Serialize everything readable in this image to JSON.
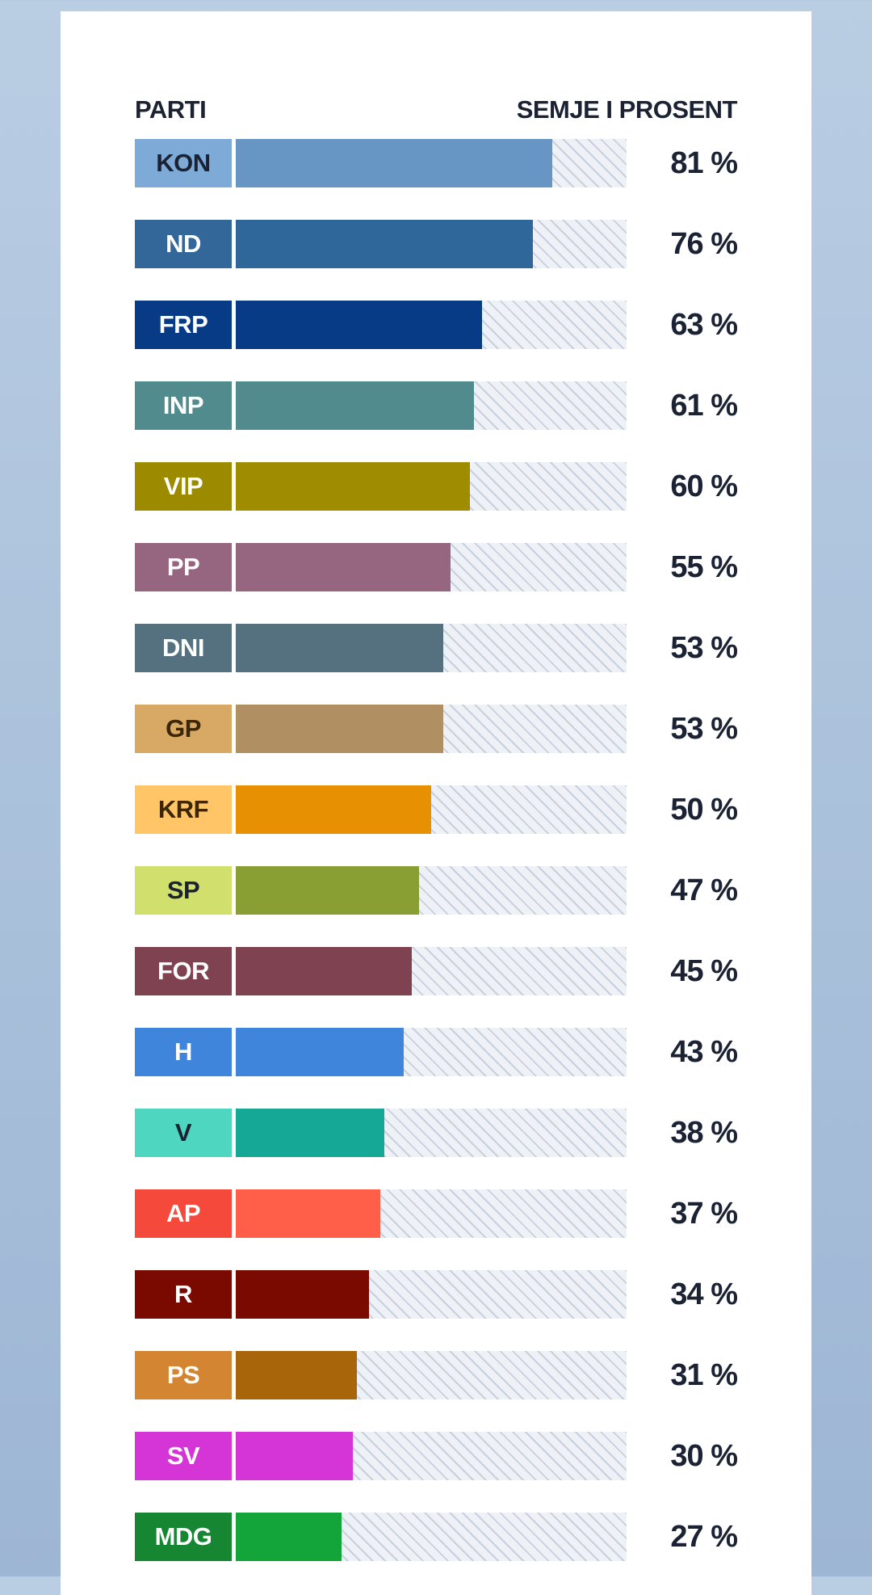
{
  "header": {
    "left": "PARTI",
    "right": "SEMJE I PROSENT"
  },
  "chart_data": {
    "type": "bar",
    "categories": [
      "KON",
      "ND",
      "FRP",
      "INP",
      "VIP",
      "PP",
      "DNI",
      "GP",
      "KRF",
      "SP",
      "FOR",
      "H",
      "V",
      "AP",
      "R",
      "PS",
      "SV",
      "MDG"
    ],
    "values": [
      81,
      76,
      63,
      61,
      60,
      55,
      53,
      53,
      50,
      47,
      45,
      43,
      38,
      37,
      34,
      31,
      30,
      27
    ],
    "value_labels": [
      "81 %",
      "76 %",
      "63 %",
      "61 %",
      "60 %",
      "55 %",
      "53 %",
      "53 %",
      "50 %",
      "47 %",
      "45 %",
      "43 %",
      "38 %",
      "37 %",
      "34 %",
      "31 %",
      "30 %",
      "27 %"
    ],
    "xlabel": "PARTI",
    "ylabel": "SEMJE I PROSENT",
    "ylim": [
      0,
      100
    ],
    "tag_colors": [
      "#7eaad8",
      "#336699",
      "#073b85",
      "#528b8e",
      "#9c8a00",
      "#966580",
      "#55707e",
      "#d8a965",
      "#ffc566",
      "#d1e06c",
      "#7e4250",
      "#4085dc",
      "#4ed6c1",
      "#f4493b",
      "#7a0a00",
      "#d48531",
      "#d535d6",
      "#178633"
    ],
    "tag_text_colors": [
      "#1a2233",
      "#ffffff",
      "#ffffff",
      "#ffffff",
      "#ffffff",
      "#ffffff",
      "#ffffff",
      "#3b2606",
      "#3b2606",
      "#1a2233",
      "#ffffff",
      "#ffffff",
      "#1a2233",
      "#ffffff",
      "#ffffff",
      "#ffffff",
      "#ffffff",
      "#ffffff"
    ],
    "bar_colors": [
      "#6796c4",
      "#30679a",
      "#073b85",
      "#528b8e",
      "#9f8c00",
      "#966580",
      "#55707e",
      "#b08f62",
      "#e79002",
      "#8a9f33",
      "#7e4250",
      "#4085dc",
      "#16a896",
      "#ff5e48",
      "#7a0a00",
      "#a9650a",
      "#d535d6",
      "#13a43a"
    ]
  }
}
